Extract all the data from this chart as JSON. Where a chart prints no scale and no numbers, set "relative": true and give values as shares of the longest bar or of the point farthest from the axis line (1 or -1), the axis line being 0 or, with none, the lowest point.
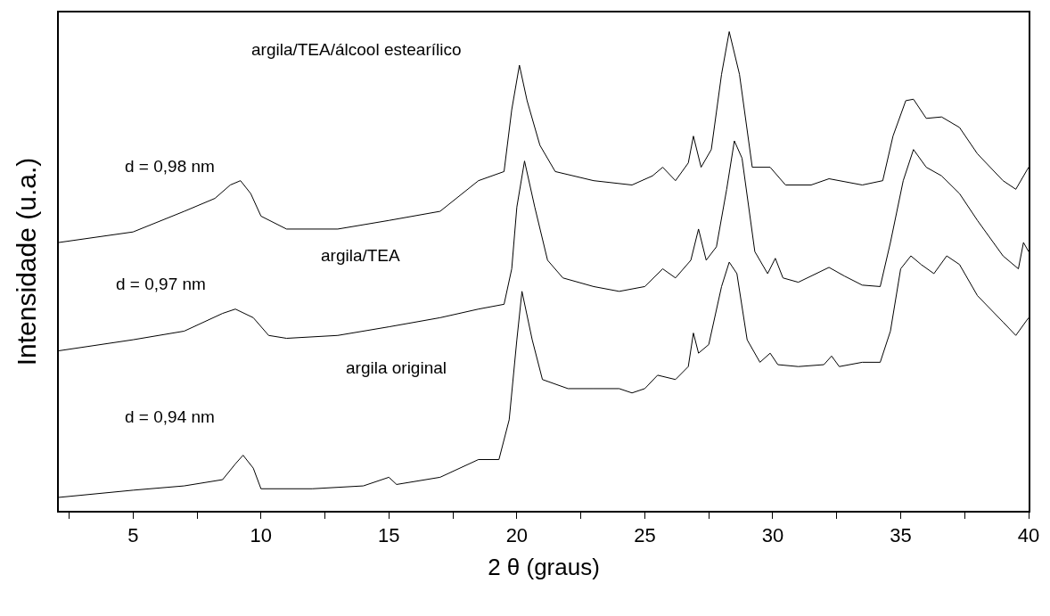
{
  "chart_data": {
    "type": "line",
    "relative": true,
    "xlabel": "2 θ (graus)",
    "ylabel": "Intensidade (u.a.)",
    "xlim": [
      2.1,
      40
    ],
    "xticks": [
      {
        "value": 2.5,
        "label": null
      },
      5,
      {
        "value": 7.5,
        "label": null
      },
      10,
      {
        "value": 12.5,
        "label": null
      },
      15,
      {
        "value": 17.5,
        "label": null
      },
      20,
      {
        "value": 22.5,
        "label": null
      },
      25,
      {
        "value": 27.5,
        "label": null
      },
      30,
      {
        "value": 32.5,
        "label": null
      },
      35,
      {
        "value": 37.5,
        "label": null
      },
      40
    ],
    "marker": "none",
    "line_style": "solid",
    "series": [
      {
        "color": "#000000",
        "x": [
          2.1,
          5,
          7,
          8.5,
          9.0,
          9.3,
          9.7,
          10,
          12,
          14,
          15,
          15.3,
          17,
          18.5,
          19.3,
          19.7,
          20.0,
          20.2,
          20.6,
          21,
          22,
          23,
          24,
          24.5,
          25,
          25.5,
          26.2,
          26.7,
          26.9,
          27.1,
          27.5,
          28.0,
          28.3,
          28.6,
          29,
          29.5,
          29.9,
          30.2,
          31,
          32,
          32.3,
          32.6,
          33.5,
          34.2,
          34.6,
          35.0,
          35.4,
          35.8,
          36.3,
          36.8,
          37.3,
          38,
          39,
          39.5,
          40
        ],
        "values": [
          0.028,
          0.043,
          0.052,
          0.065,
          0.098,
          0.116,
          0.089,
          0.046,
          0.046,
          0.052,
          0.07,
          0.055,
          0.07,
          0.107,
          0.107,
          0.19,
          0.357,
          0.458,
          0.357,
          0.274,
          0.255,
          0.255,
          0.255,
          0.246,
          0.255,
          0.283,
          0.274,
          0.301,
          0.371,
          0.329,
          0.347,
          0.468,
          0.519,
          0.495,
          0.357,
          0.31,
          0.329,
          0.305,
          0.301,
          0.305,
          0.323,
          0.301,
          0.31,
          0.31,
          0.375,
          0.505,
          0.532,
          0.514,
          0.495,
          0.532,
          0.514,
          0.449,
          0.394,
          0.366,
          0.403
        ]
      },
      {
        "color": "#000000",
        "x": [
          2.1,
          5,
          7,
          8.5,
          9.0,
          9.7,
          10.3,
          11,
          13,
          15,
          17,
          18.5,
          19.5,
          19.8,
          20.0,
          20.3,
          20.7,
          21.2,
          21.8,
          23,
          24,
          25,
          25.7,
          26.2,
          26.8,
          27.1,
          27.4,
          27.8,
          28.2,
          28.5,
          28.8,
          29.3,
          29.8,
          30.1,
          30.4,
          31,
          32.2,
          32.8,
          33.5,
          34.2,
          34.6,
          35.1,
          35.5,
          36,
          36.6,
          37.3,
          38,
          39,
          39.6,
          39.8,
          40
        ],
        "values": [
          0.334,
          0.357,
          0.375,
          0.412,
          0.421,
          0.403,
          0.366,
          0.36,
          0.366,
          0.384,
          0.403,
          0.421,
          0.431,
          0.505,
          0.634,
          0.73,
          0.634,
          0.523,
          0.486,
          0.468,
          0.458,
          0.468,
          0.505,
          0.486,
          0.523,
          0.588,
          0.523,
          0.551,
          0.671,
          0.772,
          0.736,
          0.541,
          0.495,
          0.527,
          0.486,
          0.477,
          0.508,
          0.49,
          0.471,
          0.468,
          0.56,
          0.689,
          0.754,
          0.717,
          0.699,
          0.662,
          0.606,
          0.532,
          0.505,
          0.56,
          0.541
        ]
      },
      {
        "color": "#000000",
        "x": [
          2.1,
          5,
          7,
          8.2,
          8.8,
          9.2,
          9.6,
          10,
          11,
          13,
          15,
          17,
          18.5,
          19.5,
          19.8,
          20.1,
          20.4,
          20.9,
          21.5,
          23,
          24.5,
          25.3,
          25.7,
          26.2,
          26.7,
          26.9,
          27.2,
          27.6,
          28.0,
          28.3,
          28.7,
          29.2,
          29.9,
          30.5,
          31.5,
          32.2,
          33.5,
          34.3,
          34.7,
          35.2,
          35.5,
          36,
          36.6,
          37.3,
          38,
          39,
          39.5,
          40
        ],
        "values": [
          0.56,
          0.582,
          0.625,
          0.652,
          0.68,
          0.689,
          0.662,
          0.615,
          0.588,
          0.588,
          0.606,
          0.625,
          0.689,
          0.708,
          0.837,
          0.93,
          0.856,
          0.763,
          0.708,
          0.689,
          0.68,
          0.699,
          0.717,
          0.689,
          0.726,
          0.782,
          0.717,
          0.754,
          0.911,
          1,
          0.911,
          0.717,
          0.717,
          0.68,
          0.68,
          0.693,
          0.68,
          0.689,
          0.782,
          0.856,
          0.859,
          0.819,
          0.822,
          0.8,
          0.745,
          0.689,
          0.671,
          0.717
        ]
      }
    ],
    "annotations": [
      "argila/TEA/álcool estearílico",
      "d = 0,98 nm",
      "d = 0,97 nm",
      "argila/TEA",
      "argila original",
      "d = 0,94 nm"
    ]
  }
}
